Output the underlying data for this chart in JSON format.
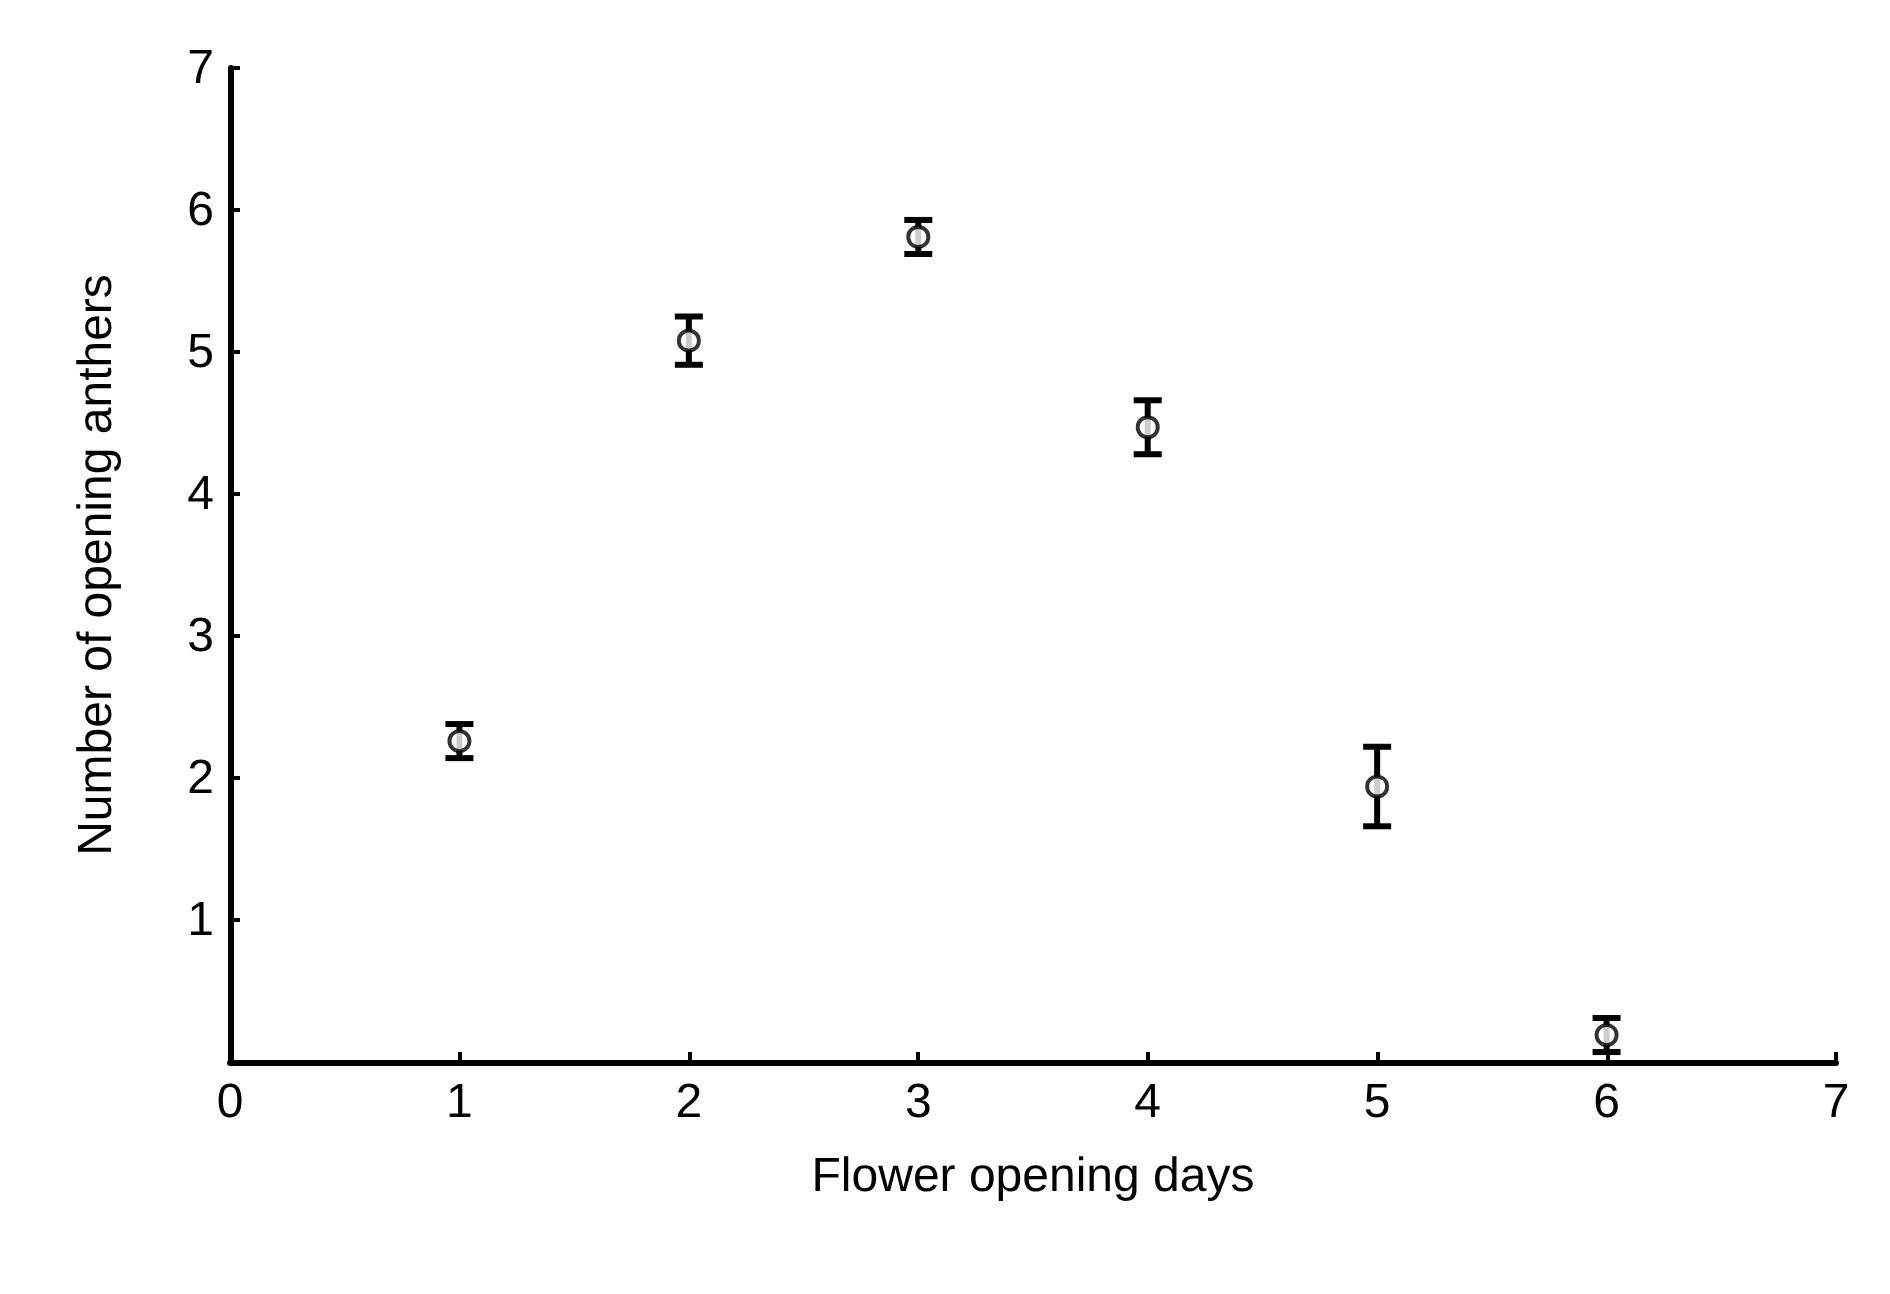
{
  "chart_data": {
    "type": "scatter",
    "xlabel": "Flower opening days",
    "ylabel": "Number of opening anthers",
    "x": [
      1,
      2,
      3,
      4,
      5,
      6
    ],
    "values": [
      2.26,
      5.08,
      5.81,
      4.47,
      1.94,
      0.19
    ],
    "errors": [
      0.12,
      0.17,
      0.12,
      0.19,
      0.28,
      0.12
    ],
    "color": "#000000",
    "marker": "circle",
    "xlim": [
      0,
      7
    ],
    "xticks": [
      0,
      1,
      2,
      3,
      4,
      5,
      6,
      7
    ],
    "ylim": [
      0,
      7
    ],
    "yticks": [
      1,
      2,
      3,
      4,
      5,
      6,
      7
    ]
  }
}
